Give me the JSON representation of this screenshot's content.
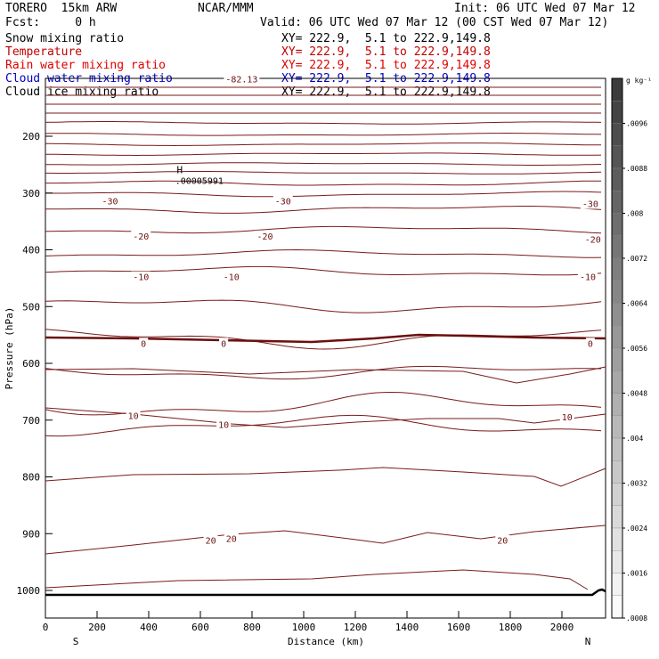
{
  "header": {
    "model": "TORERO  15km ARW",
    "center": "NCAR/MMM",
    "init": "Init: 06 UTC Wed 07 Mar 12",
    "fcst": "Fcst:     0 h",
    "valid": "Valid: 06 UTC Wed 07 Mar 12 (00 CST Wed 07 Mar 12)"
  },
  "fields": [
    {
      "name": "Snow mixing ratio",
      "xy": "XY= 222.9,  5.1 to 222.9,149.8",
      "color": "#000000"
    },
    {
      "name": "Temperature",
      "xy": "XY= 222.9,  5.1 to 222.9,149.8",
      "color": "#c00000"
    },
    {
      "name": "Rain water mixing ratio",
      "xy": "XY= 222.9,  5.1 to 222.9,149.8",
      "color": "#e00000"
    },
    {
      "name": "Cloud water mixing ratio",
      "xy": "XY= 222.9,  5.1 to 222.9,149.8",
      "color": "#0000c0"
    },
    {
      "name": "Cloud ice mixing ratio",
      "xy": "XY= 222.9,  5.1 to 222.9,149.8",
      "color": "#000000"
    }
  ],
  "chart_data": {
    "type": "contour-cross-section",
    "xlabel": "Distance (km)",
    "ylabel": "Pressure (hPa)",
    "x_ticks": [
      0,
      200,
      400,
      600,
      800,
      1000,
      1200,
      1400,
      1600,
      1800,
      2000
    ],
    "y_ticks": [
      200,
      300,
      400,
      500,
      600,
      700,
      800,
      900,
      1000
    ],
    "xlim": [
      0,
      2180
    ],
    "ylim": [
      1050,
      100
    ],
    "left_end_label": "S",
    "right_end_label": "N",
    "temperature_labels": [
      {
        "x": 250,
        "p": 315,
        "text": "-30"
      },
      {
        "x": 920,
        "p": 315,
        "text": "-30"
      },
      {
        "x": 2110,
        "p": 320,
        "text": "-30"
      },
      {
        "x": 370,
        "p": 377,
        "text": "-20"
      },
      {
        "x": 850,
        "p": 377,
        "text": "-20"
      },
      {
        "x": 2120,
        "p": 383,
        "text": "-20"
      },
      {
        "x": 370,
        "p": 449,
        "text": "-10"
      },
      {
        "x": 720,
        "p": 449,
        "text": "-10"
      },
      {
        "x": 2100,
        "p": 449,
        "text": "-10"
      },
      {
        "x": 380,
        "p": 566,
        "text": "0"
      },
      {
        "x": 690,
        "p": 566,
        "text": "0"
      },
      {
        "x": 2110,
        "p": 566,
        "text": "0"
      },
      {
        "x": 340,
        "p": 693,
        "text": "10"
      },
      {
        "x": 690,
        "p": 709,
        "text": "10"
      },
      {
        "x": 2020,
        "p": 696,
        "text": "10"
      },
      {
        "x": 640,
        "p": 913,
        "text": "20"
      },
      {
        "x": 720,
        "p": 910,
        "text": "20"
      },
      {
        "x": 1770,
        "p": 913,
        "text": "20"
      },
      {
        "x": 760,
        "p": 100,
        "text": "-82.13"
      }
    ],
    "high_marker": {
      "x": 520,
      "p": 265,
      "label": "H",
      "value": ".00005991"
    },
    "colorbar": {
      "unit": "g kg⁻¹",
      "labels": [
        ".0096",
        ".0088",
        ".008",
        ".0072",
        ".0064",
        ".0056",
        ".0048",
        ".004",
        ".0032",
        ".0024",
        ".0016",
        ".0008"
      ]
    }
  }
}
